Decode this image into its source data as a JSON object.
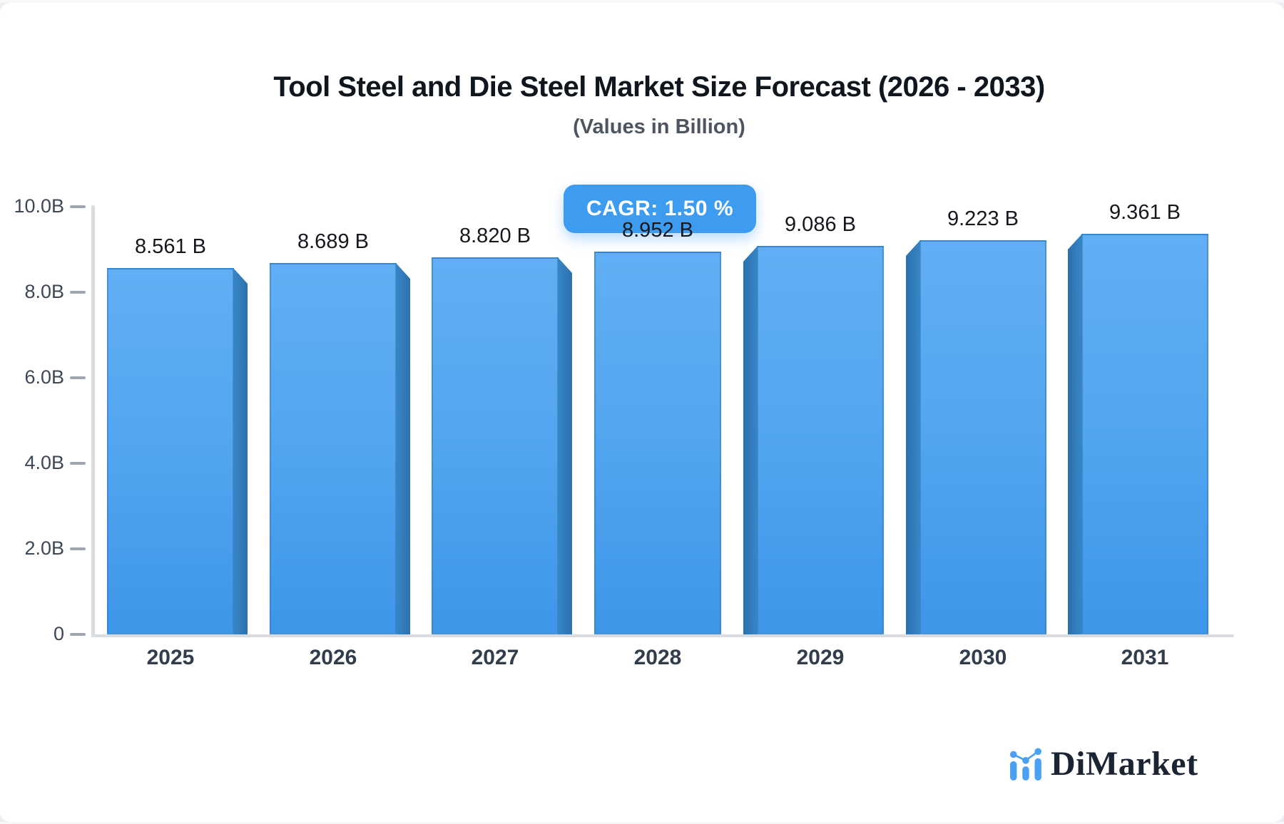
{
  "header": {
    "title": "Tool Steel and Die Steel Market Size Forecast (2026 - 2033)",
    "subtitle": "(Values in Billion)"
  },
  "badge": {
    "label": "CAGR: 1.50 %"
  },
  "chart_data": {
    "type": "bar",
    "title": "Tool Steel and Die Steel Market Size Forecast (2026 - 2033)",
    "subtitle": "(Values in Billion)",
    "categories": [
      "2025",
      "2026",
      "2027",
      "2028",
      "2029",
      "2030",
      "2031"
    ],
    "values": [
      8.561,
      8.689,
      8.82,
      8.952,
      9.086,
      9.223,
      9.361
    ],
    "value_labels": [
      "8.561 B",
      "8.689 B",
      "8.820 B",
      "8.952 B",
      "9.086 B",
      "9.223 B",
      "9.361 B"
    ],
    "cagr_annotation": "CAGR: 1.50 %",
    "xlabel": "",
    "ylabel": "",
    "ylim": [
      0,
      10
    ],
    "y_ticks": [
      {
        "label": "10.0B",
        "value": 10
      },
      {
        "label": "8.0B",
        "value": 8
      },
      {
        "label": "6.0B",
        "value": 6
      },
      {
        "label": "4.0B",
        "value": 4
      },
      {
        "label": "2.0B",
        "value": 2
      },
      {
        "label": "0",
        "value": 0
      }
    ],
    "grid": false,
    "legend_position": "none",
    "bar_color_top": "#61aef3",
    "bar_color_bottom": "#3e96e9",
    "bar_side_color": "#2e78b6",
    "badge_color": "#3d9bf0"
  },
  "branding": {
    "name": "DiMarket",
    "icon": "bar-chart-logo-icon",
    "icon_color": "#4aa1f4",
    "text_color": "#1b2433"
  }
}
